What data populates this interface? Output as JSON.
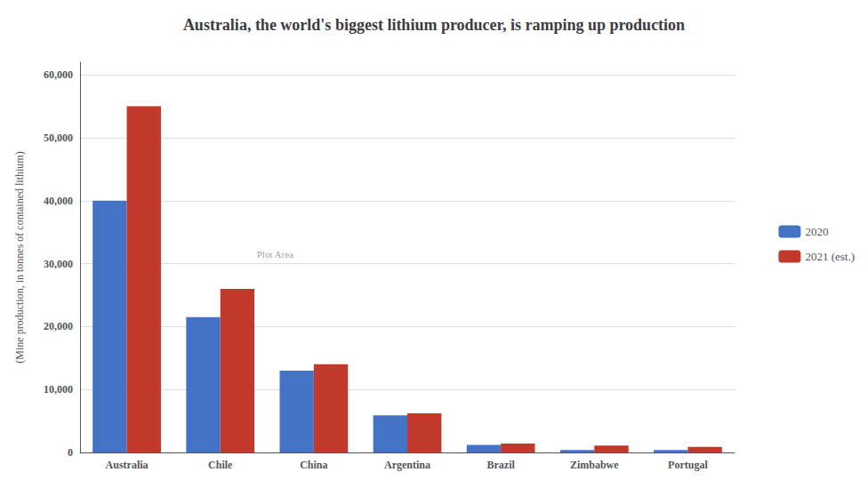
{
  "chart_data": {
    "type": "bar",
    "title": "Australia, the world's biggest lithium producer, is ramping up production",
    "ylabel": "(Mine production, in tonnes of contained lithium)",
    "categories": [
      "Australia",
      "Chile",
      "China",
      "Argentina",
      "Brazil",
      "Zimbabwe",
      "Portugal"
    ],
    "series": [
      {
        "name": "2020",
        "color": "#4472C4",
        "values": [
          40000,
          21500,
          13000,
          5900,
          1200,
          400,
          400
        ]
      },
      {
        "name": "2021 (est.)",
        "color": "#C0392B",
        "values": [
          55000,
          26000,
          14000,
          6200,
          1400,
          1100,
          900
        ]
      }
    ],
    "ylim": [
      0,
      62000
    ],
    "yticks": [
      0,
      {
        "value": 10000,
        "label": "10,000"
      },
      {
        "value": 20000,
        "label": "20,000"
      },
      {
        "value": 30000,
        "label": "30,000"
      },
      {
        "value": 40000,
        "label": "40,000"
      },
      {
        "value": 50000,
        "label": "50,000"
      },
      {
        "value": 60000,
        "label": "60,000"
      }
    ],
    "grid": true,
    "legend": "right",
    "annotation": "Plot Area"
  }
}
